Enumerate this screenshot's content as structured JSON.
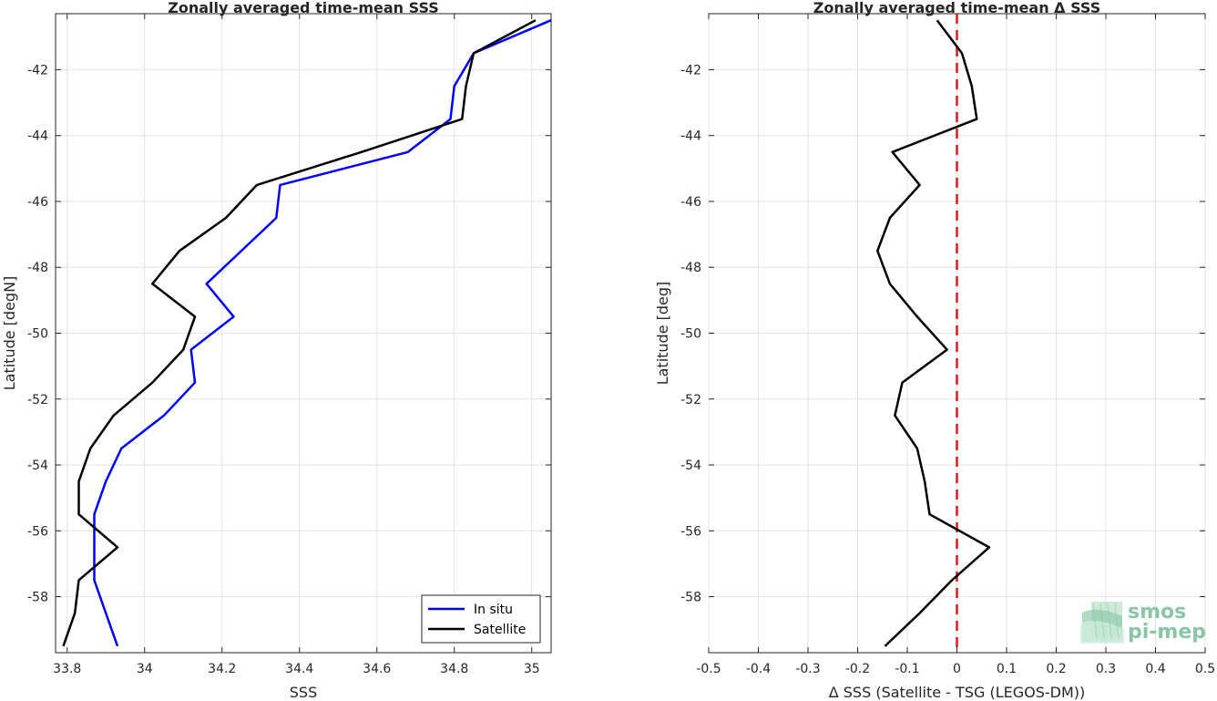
{
  "chart_data": [
    {
      "type": "line",
      "title": "Zonally averaged time-mean SSS",
      "xlabel": "SSS",
      "ylabel": "Latitude [degN]",
      "xlim": [
        33.77,
        35.05
      ],
      "ylim": [
        -59.7,
        -40.3
      ],
      "xticks": [
        33.8,
        34,
        34.2,
        34.4,
        34.6,
        34.8,
        35
      ],
      "xtick_labels": [
        "33.8",
        "34",
        "34.2",
        "34.4",
        "34.6",
        "34.8",
        "35"
      ],
      "yticks": [
        -42,
        -44,
        -46,
        -48,
        -50,
        -52,
        -54,
        -56,
        -58
      ],
      "ytick_labels": [
        "-42",
        "-44",
        "-46",
        "-48",
        "-50",
        "-52",
        "-54",
        "-56",
        "-58"
      ],
      "grid": true,
      "legend": "bottom-right",
      "series": [
        {
          "name": "In situ",
          "color": "#0000ff",
          "x": [
            35.05,
            34.85,
            34.8,
            34.79,
            34.68,
            34.35,
            34.34,
            34.16,
            34.23,
            34.12,
            34.13,
            34.05,
            33.94,
            33.9,
            33.87,
            33.87,
            33.87,
            33.9,
            33.93
          ],
          "y": [
            -40.5,
            -41.5,
            -42.5,
            -43.5,
            -44.5,
            -45.5,
            -46.5,
            -48.5,
            -49.5,
            -50.5,
            -51.5,
            -52.5,
            -53.5,
            -54.5,
            -55.5,
            -56.5,
            -57.5,
            -58.5,
            -59.5
          ]
        },
        {
          "name": "Satellite",
          "color": "#000000",
          "x": [
            35.01,
            34.85,
            34.83,
            34.82,
            34.56,
            34.29,
            34.21,
            34.09,
            34.02,
            34.13,
            34.1,
            34.02,
            33.92,
            33.86,
            33.83,
            33.83,
            33.93,
            33.83,
            33.82,
            33.79
          ],
          "y": [
            -40.5,
            -41.5,
            -42.5,
            -43.5,
            -44.5,
            -45.5,
            -46.5,
            -47.5,
            -48.5,
            -49.5,
            -50.5,
            -51.5,
            -52.5,
            -53.5,
            -54.5,
            -55.5,
            -56.5,
            -57.5,
            -58.5,
            -59.5
          ]
        }
      ]
    },
    {
      "type": "line",
      "title": "Zonally averaged time-mean Δ SSS",
      "xlabel": "Δ SSS (Satellite - TSG (LEGOS-DM))",
      "ylabel": "Latitude [deg]",
      "xlim": [
        -0.5,
        0.5
      ],
      "ylim": [
        -59.7,
        -40.3
      ],
      "xticks": [
        -0.5,
        -0.4,
        -0.3,
        -0.2,
        -0.1,
        0,
        0.1,
        0.2,
        0.3,
        0.4,
        0.5
      ],
      "xtick_labels": [
        "-0.5",
        "-0.4",
        "-0.3",
        "-0.2",
        "-0.1",
        "0",
        "0.1",
        "0.2",
        "0.3",
        "0.4",
        "0.5"
      ],
      "yticks": [
        -42,
        -44,
        -46,
        -48,
        -50,
        -52,
        -54,
        -56,
        -58
      ],
      "ytick_labels": [
        "-42",
        "-44",
        "-46",
        "-48",
        "-50",
        "-52",
        "-54",
        "-56",
        "-58"
      ],
      "grid": true,
      "zero_line_color": "#e0191b",
      "series": [
        {
          "color": "#000000",
          "x": [
            -0.04,
            0.01,
            0.03,
            0.04,
            -0.13,
            -0.075,
            -0.135,
            -0.16,
            -0.135,
            -0.08,
            -0.02,
            -0.11,
            -0.125,
            -0.08,
            -0.065,
            -0.055,
            0.065,
            -0.01,
            -0.075,
            -0.145
          ],
          "y": [
            -40.5,
            -41.5,
            -42.5,
            -43.5,
            -44.5,
            -45.5,
            -46.5,
            -47.5,
            -48.5,
            -49.5,
            -50.5,
            -51.5,
            -52.5,
            -53.5,
            -54.5,
            -55.5,
            -56.5,
            -57.5,
            -58.5,
            -59.5
          ]
        }
      ]
    }
  ],
  "logo": {
    "line1": "smos",
    "line2": "pi-mep",
    "color": "#8cc5a6"
  }
}
